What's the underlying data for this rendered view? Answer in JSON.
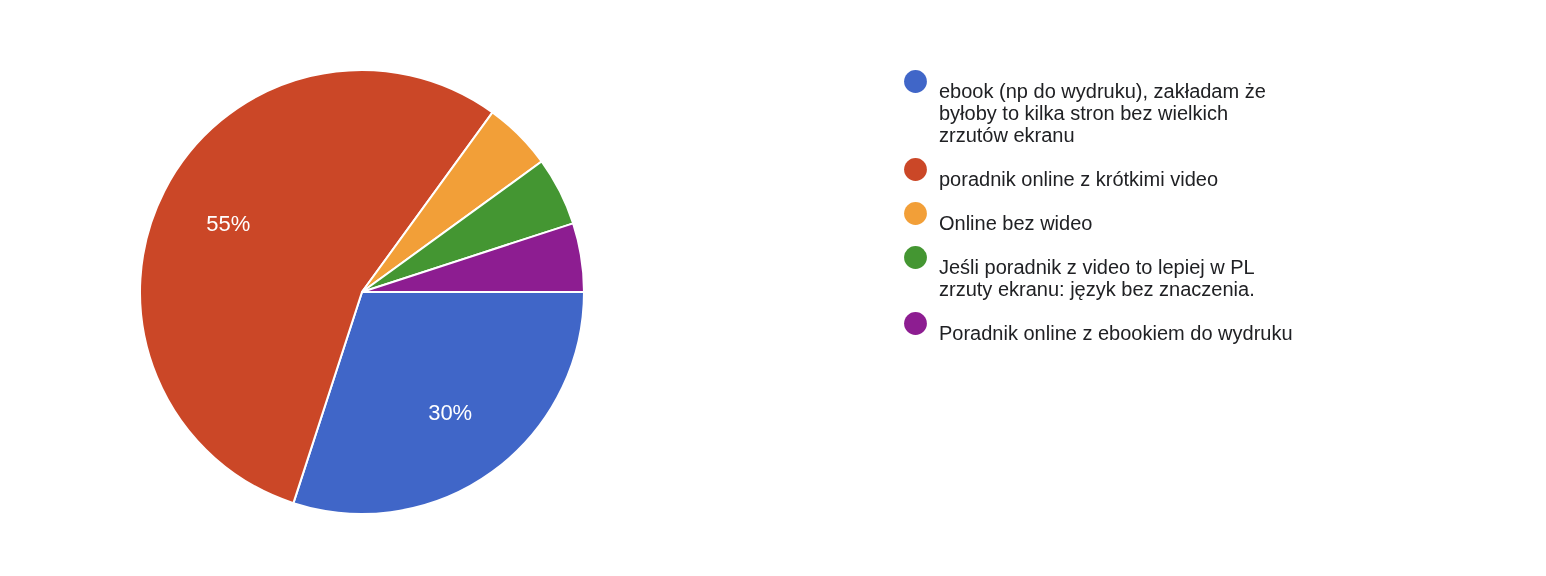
{
  "chart_data": {
    "type": "pie",
    "categories": [
      "ebook (np do wydruku), zakładam że byłoby to kilka stron bez wielkich zrzutów ekranu",
      "poradnik online z krótkimi video",
      "Online bez wideo",
      "Jeśli poradnik z video to lepiej w PL zrzuty ekranu: język bez znaczenia.",
      "Poradnik online z ebookiem do wydruku"
    ],
    "values": [
      30,
      55,
      5,
      5,
      5
    ],
    "colors": [
      "#4066c8",
      "#cb4727",
      "#f29f38",
      "#449632",
      "#8d1d91"
    ],
    "value_labels": [
      "30%",
      "55%",
      null,
      null,
      null
    ],
    "legend": "right"
  }
}
